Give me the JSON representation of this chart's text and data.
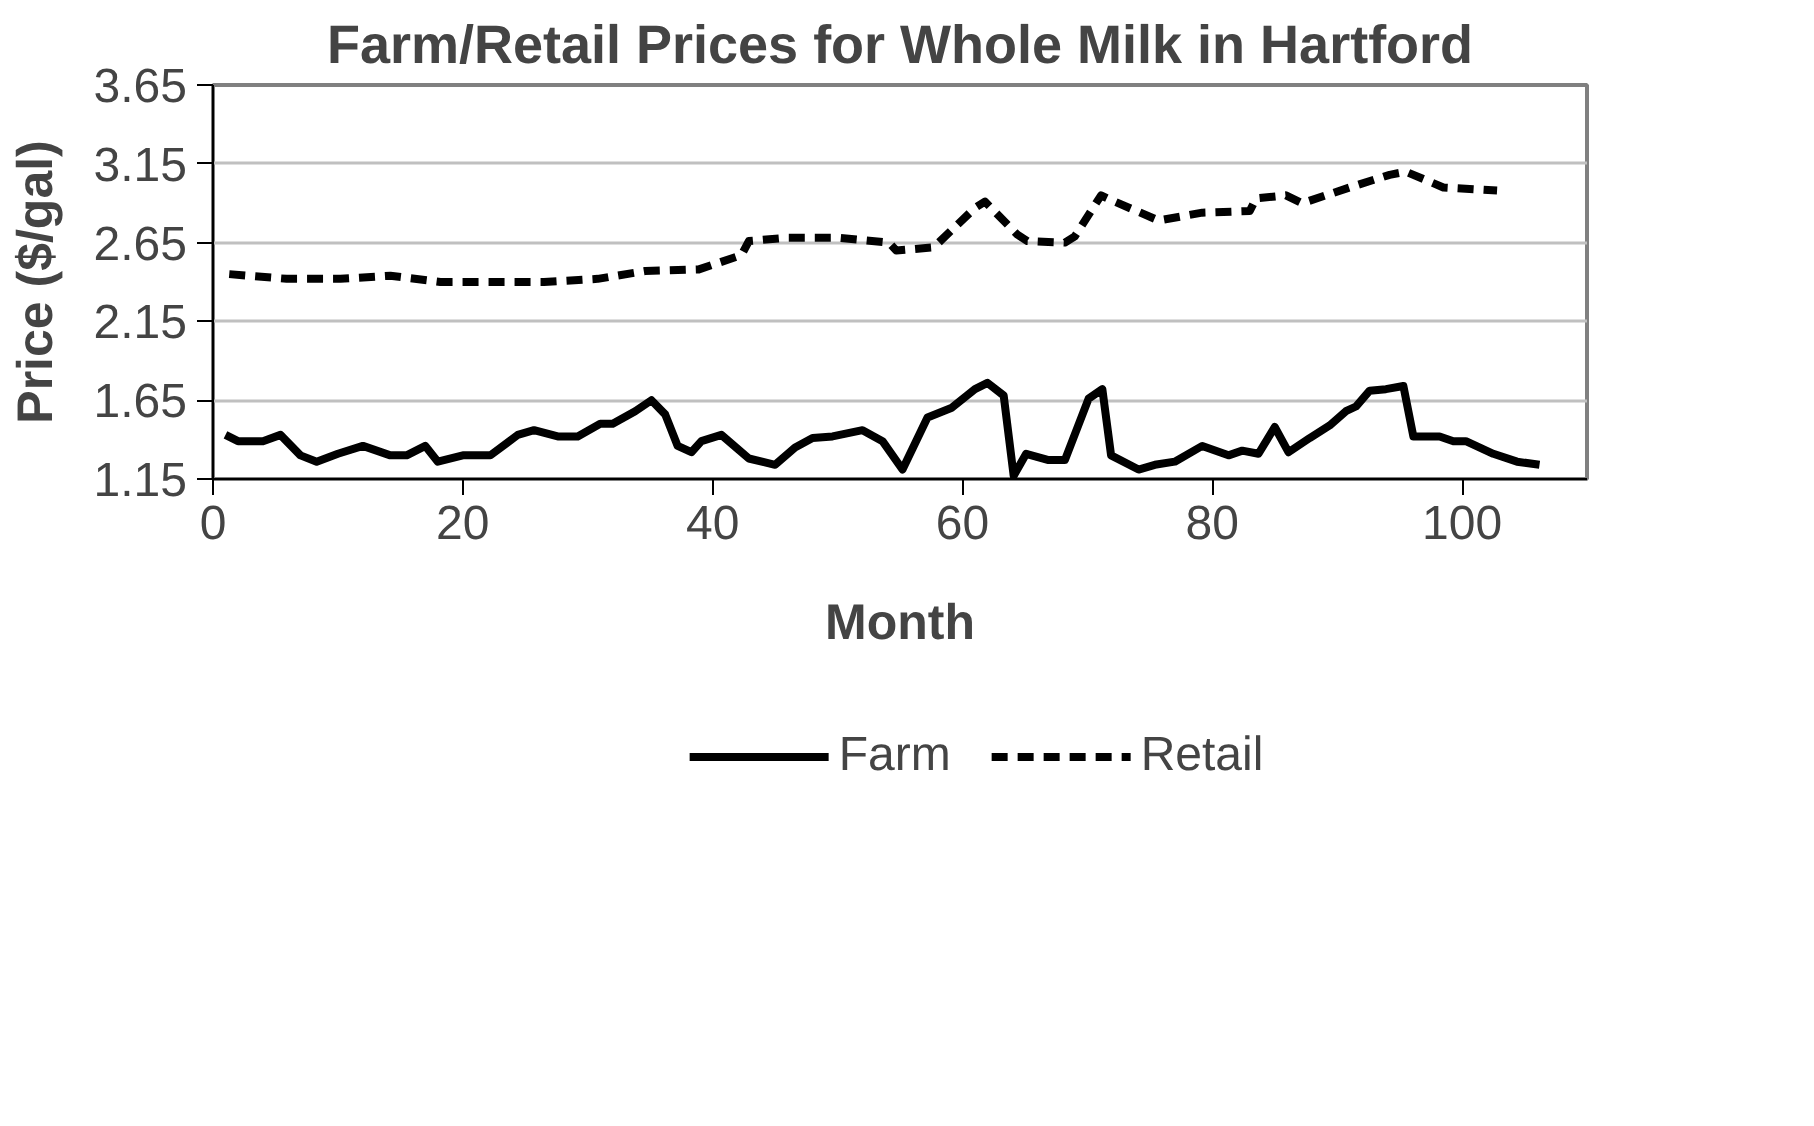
{
  "chart_data": {
    "type": "line",
    "title": "Farm/Retail Prices for Whole Milk in Hartford",
    "xlabel": "Month",
    "ylabel": "Price ($/gal)",
    "xlim": [
      0,
      110
    ],
    "xticks": [
      0,
      20,
      40,
      60,
      80,
      100
    ],
    "ylim": [
      1.15,
      3.65
    ],
    "yticks": [
      1.15,
      1.65,
      2.15,
      2.65,
      3.15,
      3.65
    ],
    "grid": "y",
    "legend": "bottom",
    "series": [
      {
        "name": "Farm",
        "color": "#000000",
        "line_style": "solid",
        "x": [
          1,
          2,
          4,
          5.4,
          7,
          8.3,
          10,
          12,
          14.2,
          15.5,
          17,
          18,
          20,
          22.2,
          24.4,
          25.7,
          27.6,
          29.2,
          31,
          32,
          33.8,
          35.1,
          36.2,
          37.2,
          38.3,
          39.1,
          40.7,
          42.9,
          45,
          46.6,
          48,
          49.6,
          52,
          53.6,
          55.2,
          57.2,
          59.1,
          61,
          62,
          63.3,
          64.1,
          65.1,
          66.9,
          68.2,
          70.1,
          71.2,
          71.9,
          74.1,
          75.4,
          77,
          79.2,
          81.3,
          82.4,
          83.7,
          85,
          86.1,
          87.8,
          89.4,
          90.7,
          91.5,
          92.6,
          93.9,
          95.3,
          96.1,
          98.2,
          99.3,
          100.3,
          102.5,
          104.4,
          106.2
        ],
        "values": [
          1.43,
          1.39,
          1.39,
          1.43,
          1.3,
          1.26,
          1.31,
          1.36,
          1.3,
          1.3,
          1.36,
          1.26,
          1.3,
          1.3,
          1.43,
          1.46,
          1.42,
          1.42,
          1.5,
          1.5,
          1.58,
          1.65,
          1.56,
          1.36,
          1.32,
          1.39,
          1.43,
          1.28,
          1.24,
          1.35,
          1.41,
          1.42,
          1.46,
          1.39,
          1.21,
          1.54,
          1.6,
          1.72,
          1.76,
          1.68,
          1.17,
          1.31,
          1.27,
          1.27,
          1.66,
          1.72,
          1.3,
          1.21,
          1.24,
          1.26,
          1.36,
          1.3,
          1.33,
          1.31,
          1.48,
          1.32,
          1.41,
          1.49,
          1.58,
          1.61,
          1.71,
          1.72,
          1.74,
          1.42,
          1.42,
          1.39,
          1.39,
          1.31,
          1.26,
          1.24
        ]
      },
      {
        "name": "Retail",
        "color": "#000000",
        "line_style": "dashed",
        "x": [
          1.3,
          5.9,
          10.2,
          14.2,
          18.2,
          22.5,
          26.5,
          30.8,
          34.6,
          38.9,
          42.3,
          42.9,
          45.8,
          50.1,
          54.1,
          54.7,
          57.7,
          61,
          61.8,
          64.4,
          65.2,
          68.2,
          69,
          71.1,
          71.9,
          75.7,
          79.2,
          83,
          83.5,
          85.9,
          87.2,
          91,
          94.2,
          95.5,
          98.5,
          102.8
        ],
        "values": [
          2.45,
          2.42,
          2.42,
          2.44,
          2.4,
          2.4,
          2.4,
          2.42,
          2.47,
          2.48,
          2.57,
          2.66,
          2.68,
          2.68,
          2.65,
          2.6,
          2.62,
          2.87,
          2.91,
          2.7,
          2.66,
          2.65,
          2.69,
          2.95,
          2.92,
          2.79,
          2.84,
          2.85,
          2.93,
          2.95,
          2.9,
          3.0,
          3.08,
          3.1,
          3.0,
          2.98
        ]
      }
    ]
  }
}
